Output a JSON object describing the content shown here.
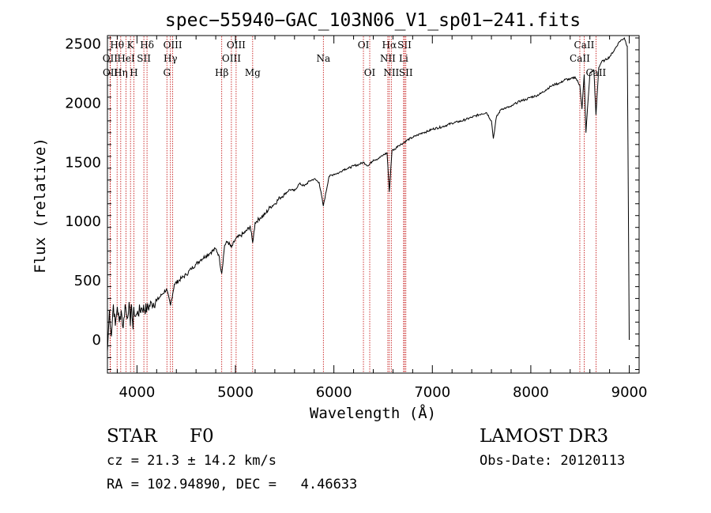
{
  "colors": {
    "background": "#ffffff",
    "axis": "#000000",
    "spectrum": "#000000",
    "line_marker": "#c00000"
  },
  "chart_data": {
    "type": "line",
    "title": "spec−55940−GAC_103N06_V1_sp01−241.fits",
    "xlabel": "Wavelength (Å)",
    "ylabel": "Flux (relative)",
    "xlim": [
      3700,
      9100
    ],
    "ylim": [
      -280,
      2570
    ],
    "x_ticks": [
      4000,
      5000,
      6000,
      7000,
      8000,
      9000
    ],
    "x_tick_labels": [
      "4000",
      "5000",
      "6000",
      "7000",
      "8000",
      "9000"
    ],
    "y_ticks": [
      0,
      500,
      1000,
      1500,
      2000,
      2500
    ],
    "y_tick_labels": [
      "0",
      "500",
      "1000",
      "1500",
      "2000",
      "2500"
    ],
    "grid": false,
    "series": [
      {
        "name": "spectrum",
        "x": [
          3700,
          3720,
          3740,
          3760,
          3780,
          3800,
          3820,
          3840,
          3860,
          3880,
          3900,
          3920,
          3933,
          3945,
          3960,
          3968,
          3980,
          4000,
          4050,
          4102,
          4150,
          4200,
          4250,
          4300,
          4340,
          4380,
          4450,
          4500,
          4550,
          4600,
          4650,
          4700,
          4750,
          4800,
          4830,
          4861,
          4890,
          4920,
          4960,
          5000,
          5050,
          5100,
          5150,
          5175,
          5200,
          5250,
          5300,
          5350,
          5400,
          5450,
          5500,
          5550,
          5600,
          5650,
          5700,
          5750,
          5800,
          5850,
          5893,
          5950,
          6000,
          6050,
          6100,
          6150,
          6200,
          6250,
          6300,
          6350,
          6400,
          6450,
          6500,
          6540,
          6563,
          6590,
          6620,
          6650,
          6700,
          6750,
          6800,
          6850,
          6900,
          6950,
          7000,
          7100,
          7200,
          7300,
          7400,
          7500,
          7550,
          7600,
          7620,
          7650,
          7700,
          7750,
          7800,
          7850,
          7900,
          7950,
          8000,
          8050,
          8100,
          8150,
          8200,
          8250,
          8300,
          8350,
          8400,
          8450,
          8498,
          8520,
          8542,
          8560,
          8600,
          8640,
          8662,
          8690,
          8720,
          8750,
          8800,
          8850,
          8900,
          8950,
          8980,
          9000
        ],
        "y": [
          -100,
          250,
          30,
          300,
          120,
          280,
          150,
          250,
          100,
          300,
          180,
          320,
          120,
          300,
          90,
          280,
          200,
          220,
          270,
          260,
          310,
          330,
          380,
          430,
          290,
          470,
          520,
          550,
          600,
          640,
          680,
          710,
          740,
          770,
          720,
          560,
          800,
          830,
          780,
          850,
          880,
          910,
          960,
          820,
          990,
          1030,
          1060,
          1120,
          1150,
          1200,
          1230,
          1270,
          1260,
          1320,
          1300,
          1340,
          1360,
          1330,
          1130,
          1380,
          1400,
          1410,
          1440,
          1450,
          1470,
          1480,
          1500,
          1470,
          1520,
          1530,
          1560,
          1580,
          1250,
          1600,
          1610,
          1640,
          1660,
          1690,
          1710,
          1730,
          1750,
          1760,
          1780,
          1800,
          1830,
          1850,
          1880,
          1910,
          1920,
          1850,
          1700,
          1880,
          1950,
          1960,
          1970,
          2000,
          2020,
          2030,
          2050,
          2060,
          2080,
          2110,
          2140,
          2160,
          2170,
          2200,
          2200,
          2220,
          2150,
          1950,
          2240,
          1750,
          2250,
          2280,
          1900,
          2300,
          2350,
          2360,
          2390,
          2450,
          2520,
          2550,
          2480,
          0
        ]
      }
    ],
    "line_markers": [
      {
        "label": "Hθ",
        "wavelength": 3798,
        "row": 1
      },
      {
        "label": "OII",
        "wavelength": 3727,
        "row": 2
      },
      {
        "label": "OII",
        "wavelength": 3729,
        "row": 3
      },
      {
        "label": "Hη",
        "wavelength": 3835,
        "row": 3
      },
      {
        "label": "HeI",
        "wavelength": 3889,
        "row": 2
      },
      {
        "label": "K",
        "wavelength": 3934,
        "row": 1
      },
      {
        "label": "H",
        "wavelength": 3969,
        "row": 3
      },
      {
        "label": "SII",
        "wavelength": 4070,
        "row": 2
      },
      {
        "label": "Hδ",
        "wavelength": 4102,
        "row": 1
      },
      {
        "label": "OIII",
        "wavelength": 4363,
        "row": 1
      },
      {
        "label": "Hγ",
        "wavelength": 4340,
        "row": 2
      },
      {
        "label": "G",
        "wavelength": 4304,
        "row": 3
      },
      {
        "label": "Hβ",
        "wavelength": 4861,
        "row": 3
      },
      {
        "label": "OIII",
        "wavelength": 5007,
        "row": 1
      },
      {
        "label": "OIII",
        "wavelength": 4959,
        "row": 2
      },
      {
        "label": "Mg",
        "wavelength": 5175,
        "row": 3
      },
      {
        "label": "Na",
        "wavelength": 5893,
        "row": 2
      },
      {
        "label": "OI",
        "wavelength": 6300,
        "row": 1
      },
      {
        "label": "OI",
        "wavelength": 6364,
        "row": 3
      },
      {
        "label": "Hα",
        "wavelength": 6563,
        "row": 1
      },
      {
        "label": "NII",
        "wavelength": 6548,
        "row": 2
      },
      {
        "label": "NII",
        "wavelength": 6583,
        "row": 3
      },
      {
        "label": "SII",
        "wavelength": 6717,
        "row": 1
      },
      {
        "label": "Li",
        "wavelength": 6708,
        "row": 2
      },
      {
        "label": "SII",
        "wavelength": 6731,
        "row": 3
      },
      {
        "label": "CaII",
        "wavelength": 8542,
        "row": 1
      },
      {
        "label": "CaII",
        "wavelength": 8498,
        "row": 2
      },
      {
        "label": "CaII",
        "wavelength": 8662,
        "row": 3
      }
    ]
  },
  "footer": {
    "class_label": "STAR",
    "subclass": "F0",
    "survey": "LAMOST DR3",
    "redshift_line": "cz = 21.3 ± 14.2 km/s",
    "obs_date_line": "Obs-Date: 20120113",
    "coords_line": "RA = 102.94890, DEC =   4.46633"
  }
}
